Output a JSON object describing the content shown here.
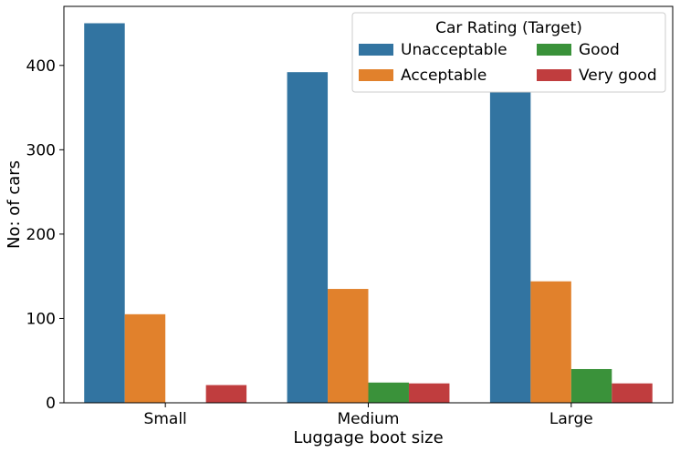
{
  "chart_data": {
    "type": "bar",
    "title": "",
    "xlabel": "Luggage boot size",
    "ylabel": "No: of cars",
    "categories": [
      "Small",
      "Medium",
      "Large"
    ],
    "ylim": [
      0,
      470
    ],
    "yticks": [
      0,
      100,
      200,
      300,
      400
    ],
    "legend": {
      "title": "Car Rating (Target)",
      "placement": "top-right",
      "columns": 2
    },
    "series": [
      {
        "name": "Unacceptable",
        "color": "#3274a1",
        "values": [
          450,
          392,
          368
        ]
      },
      {
        "name": "Acceptable",
        "color": "#e1812c",
        "values": [
          105,
          135,
          144
        ]
      },
      {
        "name": "Good",
        "color": "#3a923a",
        "values": [
          0,
          24,
          40
        ]
      },
      {
        "name": "Very good",
        "color": "#c03d3e",
        "values": [
          21,
          23,
          23
        ]
      }
    ]
  }
}
